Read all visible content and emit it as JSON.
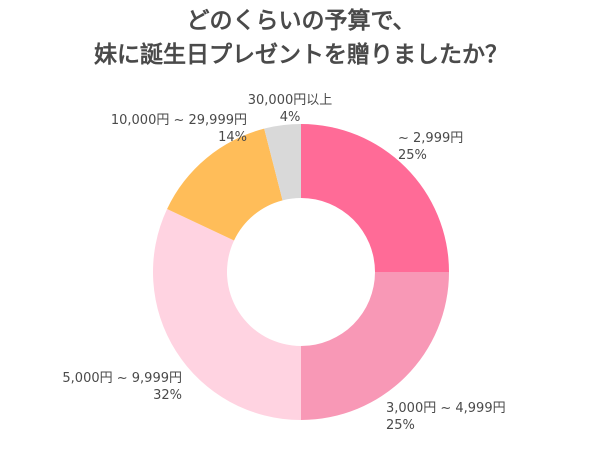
{
  "chart_data": {
    "type": "pie",
    "title_lines": [
      "どのくらいの予算で、",
      "妹に誕生日プレゼントを贈りましたか？"
    ],
    "categories": [
      "~ 2,999円",
      "3,000円 ~ 4,999円",
      "5,000円 ~ 9,999円",
      "10,000円 ~ 29,999円",
      "30,000円以上"
    ],
    "values": [
      25,
      25,
      32,
      14,
      4
    ],
    "value_labels": [
      "25%",
      "25%",
      "32%",
      "14%",
      "4%"
    ],
    "colors": [
      "#ff6b97",
      "#f898b6",
      "#ffd3e1",
      "#ffbd59",
      "#d9d9d9"
    ],
    "donut": true,
    "start_angle": "top",
    "direction": "clockwise"
  }
}
